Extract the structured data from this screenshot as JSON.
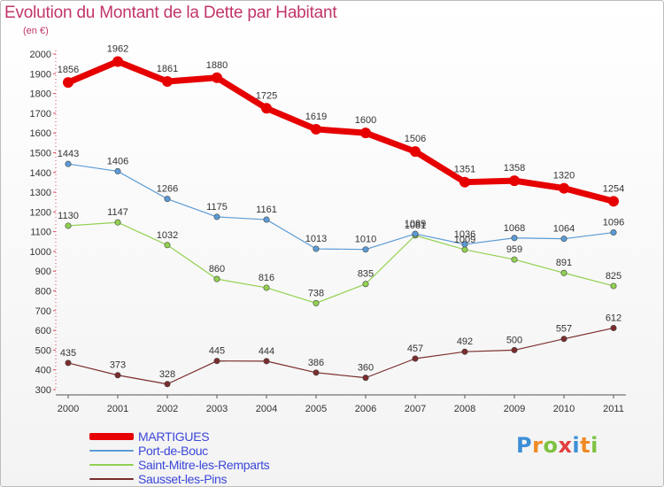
{
  "title": "Evolution du Montant de la Dette par Habitant",
  "subtitle": "(en €)",
  "logo": {
    "letters": [
      {
        "ch": "P",
        "color": "#3d8fd6"
      },
      {
        "ch": "r",
        "color": "#f08a24"
      },
      {
        "ch": "o",
        "color": "#7fc241"
      },
      {
        "ch": "x",
        "color": "#e23f3f"
      },
      {
        "ch": "i",
        "color": "#3d8fd6"
      },
      {
        "ch": "t",
        "color": "#f08a24"
      },
      {
        "ch": "i",
        "color": "#7fc241"
      }
    ]
  },
  "chart_data": {
    "type": "line",
    "title": "Evolution du Montant de la Dette par Habitant",
    "subtitle": "(en €)",
    "x": [
      "2000",
      "2001",
      "2002",
      "2003",
      "2004",
      "2005",
      "2006",
      "2007",
      "2008",
      "2009",
      "2010",
      "2011"
    ],
    "ylim": [
      300,
      2000
    ],
    "yticks": [
      "300",
      "400",
      "500",
      "600",
      "700",
      "800",
      "900",
      "1000",
      "1100",
      "1200",
      "1300",
      "1400",
      "1500",
      "1600",
      "1700",
      "1800",
      "1900",
      "2000"
    ],
    "grid": false,
    "legend": "bottom-left",
    "series": [
      {
        "name": "MARTIGUES",
        "color": "#e60000",
        "width": 7,
        "values": [
          1856,
          1962,
          1861,
          1880,
          1725,
          1619,
          1600,
          1506,
          1351,
          1358,
          1320,
          1254
        ],
        "labels": [
          "1856",
          "1962",
          "1861",
          "1880",
          "1725",
          "1619",
          "1600",
          "1506",
          "1351",
          "1358",
          "1320",
          "1254"
        ]
      },
      {
        "name": "Port-de-Bouc",
        "color": "#5b9bd5",
        "width": 1.2,
        "values": [
          1443,
          1406,
          1266,
          1175,
          1161,
          1013,
          1010,
          1089,
          1036,
          1068,
          1064,
          1096
        ],
        "labels": [
          "1443",
          "1406",
          "1266",
          "1175",
          "1161",
          "1013",
          "1010",
          "1089",
          "1036",
          "1068",
          "1064",
          "1096"
        ]
      },
      {
        "name": "Saint-Mitre-les-Remparts",
        "color": "#92d050",
        "width": 1.2,
        "values": [
          1130,
          1147,
          1032,
          860,
          816,
          738,
          835,
          1081,
          1009,
          959,
          891,
          825
        ],
        "labels": [
          "1130",
          "1147",
          "1032",
          "860",
          "816",
          "738",
          "835",
          "1081",
          "1009",
          "959",
          "891",
          "825"
        ]
      },
      {
        "name": "Sausset-les-Pins",
        "color": "#7b2c2c",
        "width": 1.2,
        "values": [
          435,
          373,
          328,
          445,
          444,
          386,
          360,
          457,
          492,
          500,
          557,
          612
        ],
        "labels": [
          "435",
          "373",
          "328",
          "445",
          "444",
          "386",
          "360",
          "457",
          "492",
          "500",
          "557",
          "612"
        ]
      }
    ]
  }
}
